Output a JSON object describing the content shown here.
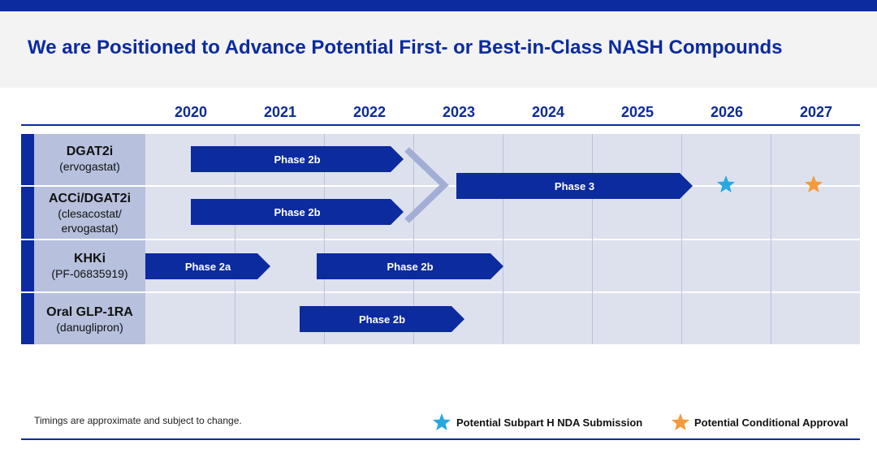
{
  "title": "We are Positioned to Advance Potential First- or Best-in-Class NASH Compounds",
  "years": [
    "2020",
    "2021",
    "2022",
    "2023",
    "2024",
    "2025",
    "2026",
    "2027"
  ],
  "rows": [
    {
      "name": "DGAT2i",
      "sub": "(ervogastat)"
    },
    {
      "name": "ACCi/DGAT2i",
      "sub": "(clesacostat/\nervogastat)"
    },
    {
      "name": "KHKi",
      "sub": "(PF-06835919)"
    },
    {
      "name": "Oral GLP-1RA",
      "sub": "(danuglipron)"
    }
  ],
  "phases": {
    "dgat2i": "Phase 2b",
    "acci_dgat2i": "Phase 2b",
    "combined": "Phase 3",
    "khki_a": "Phase 2a",
    "khki_b": "Phase 2b",
    "glp1": "Phase 2b"
  },
  "milestones": [
    {
      "label": "Potential Subpart H NDA Submission",
      "color": "#29a8e0",
      "icon": "star-icon",
      "year": "2026"
    },
    {
      "label": "Potential Conditional Approval",
      "color": "#f59a3a",
      "icon": "star-icon",
      "year": "2027"
    }
  ],
  "footnote": "Timings are approximate and subject to change.",
  "colors": {
    "brand": "#0b2b9e",
    "lane": "#dde1ee",
    "label_cell": "#b7c0dc"
  }
}
